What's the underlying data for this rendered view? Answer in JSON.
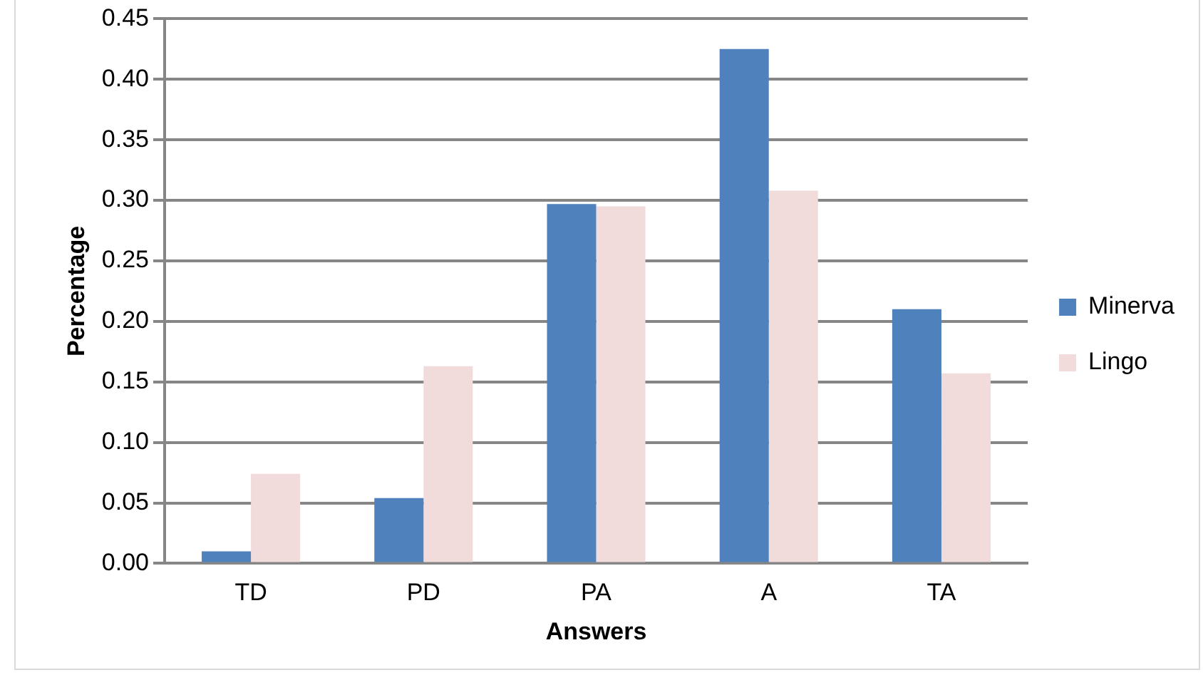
{
  "chart_data": {
    "type": "bar",
    "xlabel": "Answers",
    "ylabel": "Percentage",
    "categories": [
      "TD",
      "PD",
      "PA",
      "A",
      "TA"
    ],
    "series": [
      {
        "name": "Minerva",
        "color": "#4f81bd",
        "values": [
          0.01,
          0.054,
          0.297,
          0.425,
          0.21
        ]
      },
      {
        "name": "Lingo",
        "color": "#f2dcdb",
        "values": [
          0.074,
          0.163,
          0.295,
          0.308,
          0.157
        ]
      }
    ],
    "ylim": [
      0,
      0.45
    ],
    "yticks": [
      {
        "value": 0,
        "label": "0.00"
      },
      {
        "value": 0.05,
        "label": "0.05"
      },
      {
        "value": 0.1,
        "label": "0.10"
      },
      {
        "value": 0.15,
        "label": "0.15"
      },
      {
        "value": 0.2,
        "label": "0.20"
      },
      {
        "value": 0.25,
        "label": "0.25"
      },
      {
        "value": 0.3,
        "label": "0.30"
      },
      {
        "value": 0.35,
        "label": "0.35"
      },
      {
        "value": 0.4,
        "label": "0.40"
      },
      {
        "value": 0.45,
        "label": "0.45"
      }
    ],
    "grid": "y",
    "legend": "right"
  }
}
